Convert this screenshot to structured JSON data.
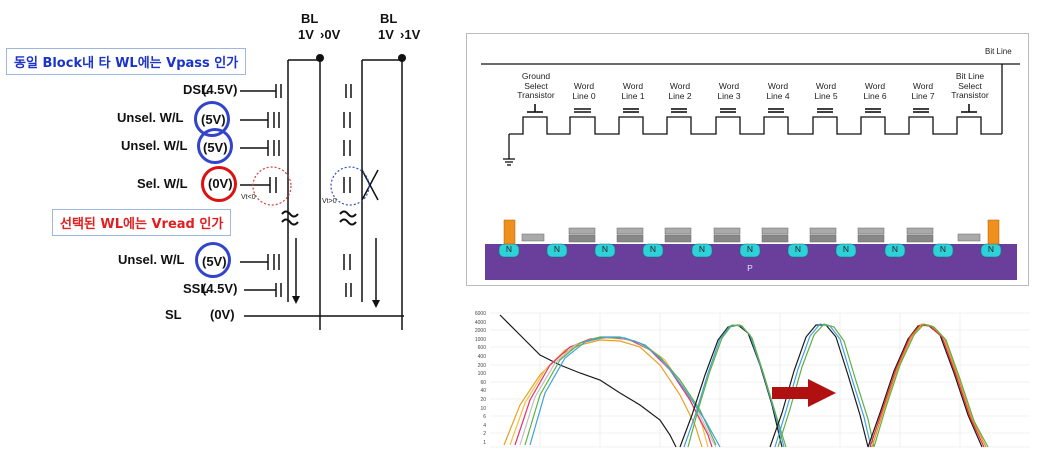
{
  "left_circuit": {
    "callout_top": "동일 Block내 타 WL에는 Vpass 인가",
    "callout_mid": "선택된 WL에는 Vread 인가",
    "rows": [
      {
        "label": "DSL",
        "voltage": "(4.5V)"
      },
      {
        "label": "Unsel. W/L",
        "voltage": "(5V)"
      },
      {
        "label": "Unsel. W/L",
        "voltage": "(5V)"
      },
      {
        "label": "Sel. W/L",
        "voltage": "(0V)"
      },
      {
        "label": "Unsel. W/L",
        "voltage": "(5V)"
      },
      {
        "label": "SSL",
        "voltage": "(4.5V)"
      },
      {
        "label": "SL",
        "voltage": "(0V)"
      }
    ],
    "bl1_title": "BL",
    "bl1_volt": "1V",
    "bl1_arrow": "0V",
    "bl2_title": "BL",
    "bl2_volt": "1V",
    "bl2_arrow": "1V",
    "vt_left": "Vt<0",
    "vt_right": "Vt>0",
    "colors": {
      "blue_ring": "#3344cc",
      "red_ring": "#dd1111",
      "callout_blue": "#1b33c8",
      "callout_red": "#e02020"
    }
  },
  "nand_panel": {
    "bitline_label": "Bit Line",
    "transistors": [
      "Ground Select Transistor",
      "Word Line 0",
      "Word Line 1",
      "Word Line 2",
      "Word Line 3",
      "Word Line 4",
      "Word Line 5",
      "Word Line 6",
      "Word Line 7",
      "Bit Line Select Transistor"
    ],
    "n_label": "N",
    "substrate_label": "P",
    "colors": {
      "substrate": "#6a3f9c",
      "n_well": "#2fd1d8",
      "gate": "#aaaaaa",
      "contact": "#f0901c"
    }
  },
  "chart_panel": {
    "y_ticks": [
      "6000",
      "4000",
      "2000",
      "1000",
      "600",
      "400",
      "200",
      "100",
      "60",
      "40",
      "20",
      "10",
      "6",
      "4",
      "2",
      "1"
    ],
    "arrow_color": "#b01010"
  }
}
